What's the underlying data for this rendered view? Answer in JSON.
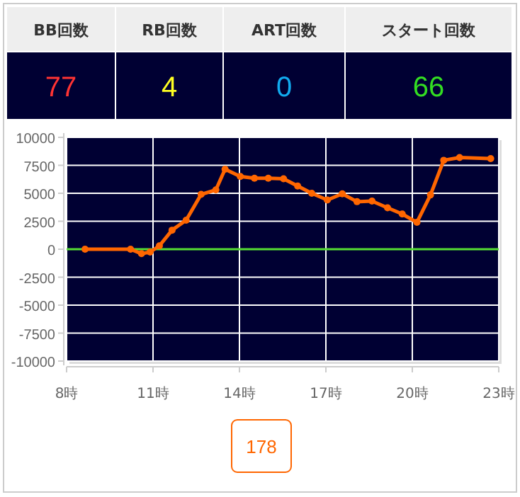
{
  "chart_data": [
    {
      "type": "other",
      "annotations": [
        "BB回数",
        "77",
        "RB回数",
        "4",
        "ART回数",
        "0",
        "スタート回数",
        "66"
      ]
    },
    {
      "type": "line",
      "x": [
        8.64,
        10.22,
        10.6,
        10.9,
        11.22,
        11.66,
        12.15,
        12.67,
        13.18,
        13.5,
        14.03,
        14.52,
        15.0,
        15.53,
        16.02,
        16.51,
        17.05,
        17.57,
        18.08,
        18.6,
        19.14,
        19.65,
        20.16,
        20.63,
        21.09,
        21.64,
        22.72
      ],
      "series": [
        {
          "color": "#ff6600",
          "values": [
            0,
            0,
            -400,
            -250,
            300,
            1700,
            2600,
            4900,
            5300,
            7150,
            6500,
            6350,
            6350,
            6300,
            5650,
            5000,
            4400,
            4950,
            4250,
            4300,
            3700,
            3150,
            2400,
            4850,
            7950,
            8200,
            8100
          ]
        }
      ],
      "xlim": [
        8,
        23
      ],
      "xticks": [
        {
          "value": 8,
          "label": "8時"
        },
        {
          "value": 11,
          "label": "11時"
        },
        {
          "value": 14,
          "label": "14時"
        },
        {
          "value": 17,
          "label": "17時"
        },
        {
          "value": 20,
          "label": "20時"
        },
        {
          "value": 23,
          "label": "23時"
        }
      ],
      "ylim": [
        -10000,
        10000
      ],
      "yticks": [
        -10000,
        -7500,
        -5000,
        -2500,
        0,
        2500,
        5000,
        7500,
        10000
      ],
      "grid": true,
      "marker": "circle",
      "line_style": "solid",
      "ref_lines": [
        {
          "axis": "y",
          "value": 0,
          "color": "#55dd33"
        }
      ],
      "annotations": [
        "178"
      ]
    }
  ]
}
